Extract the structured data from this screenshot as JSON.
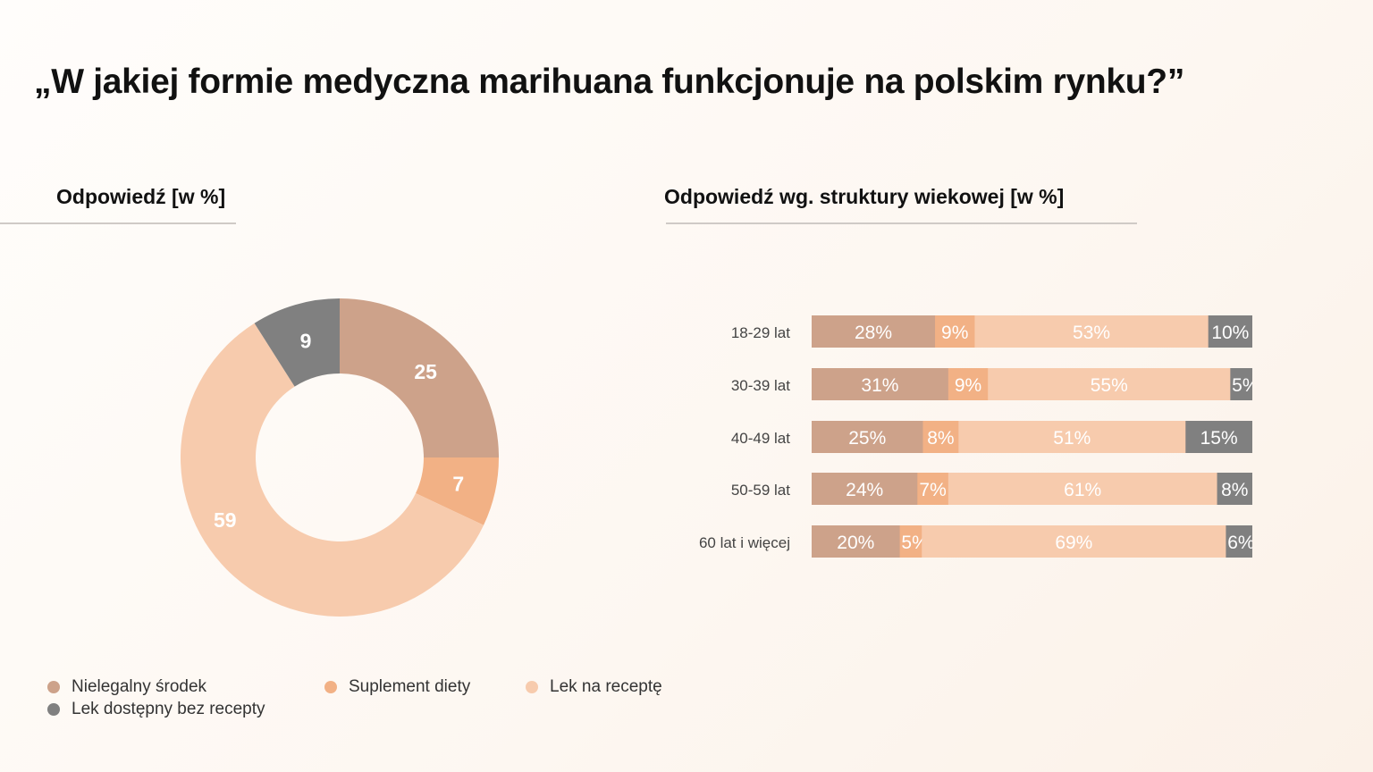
{
  "title": "„W jakiej formie medyczna marihuana funkcjonuje na polskim rynku?”",
  "colors": {
    "illegal": "#cda28a",
    "supplement": "#f2b185",
    "prescription": "#f7cbad",
    "otc": "#808080"
  },
  "chart_data": [
    {
      "type": "pie",
      "title": "Odpowiedź [w %]",
      "donut": true,
      "categories": [
        "Nielegalny środek",
        "Suplement diety",
        "Lek na receptę",
        "Lek dostępny bez recepty"
      ],
      "values": [
        25,
        7,
        59,
        9
      ],
      "labels": [
        "25",
        "7",
        "59",
        "9"
      ]
    },
    {
      "type": "bar",
      "orientation": "horizontal",
      "stacked": true,
      "title": "Odpowiedź wg. struktury wiekowej [w %]",
      "categories": [
        "18-29 lat",
        "30-39 lat",
        "40-49 lat",
        "50-59 lat",
        "60 lat i więcej"
      ],
      "series": [
        {
          "name": "Nielegalny środek",
          "values": [
            28,
            31,
            25,
            24,
            20
          ]
        },
        {
          "name": "Suplement diety",
          "values": [
            9,
            9,
            8,
            7,
            5
          ]
        },
        {
          "name": "Lek na receptę",
          "values": [
            53,
            55,
            51,
            61,
            69
          ]
        },
        {
          "name": "Lek dostępny bez recepty",
          "values": [
            10,
            5,
            15,
            8,
            6
          ]
        }
      ]
    }
  ],
  "legend": [
    "Nielegalny środek",
    "Suplement diety",
    "Lek na receptę",
    "Lek dostępny bez recepty"
  ]
}
